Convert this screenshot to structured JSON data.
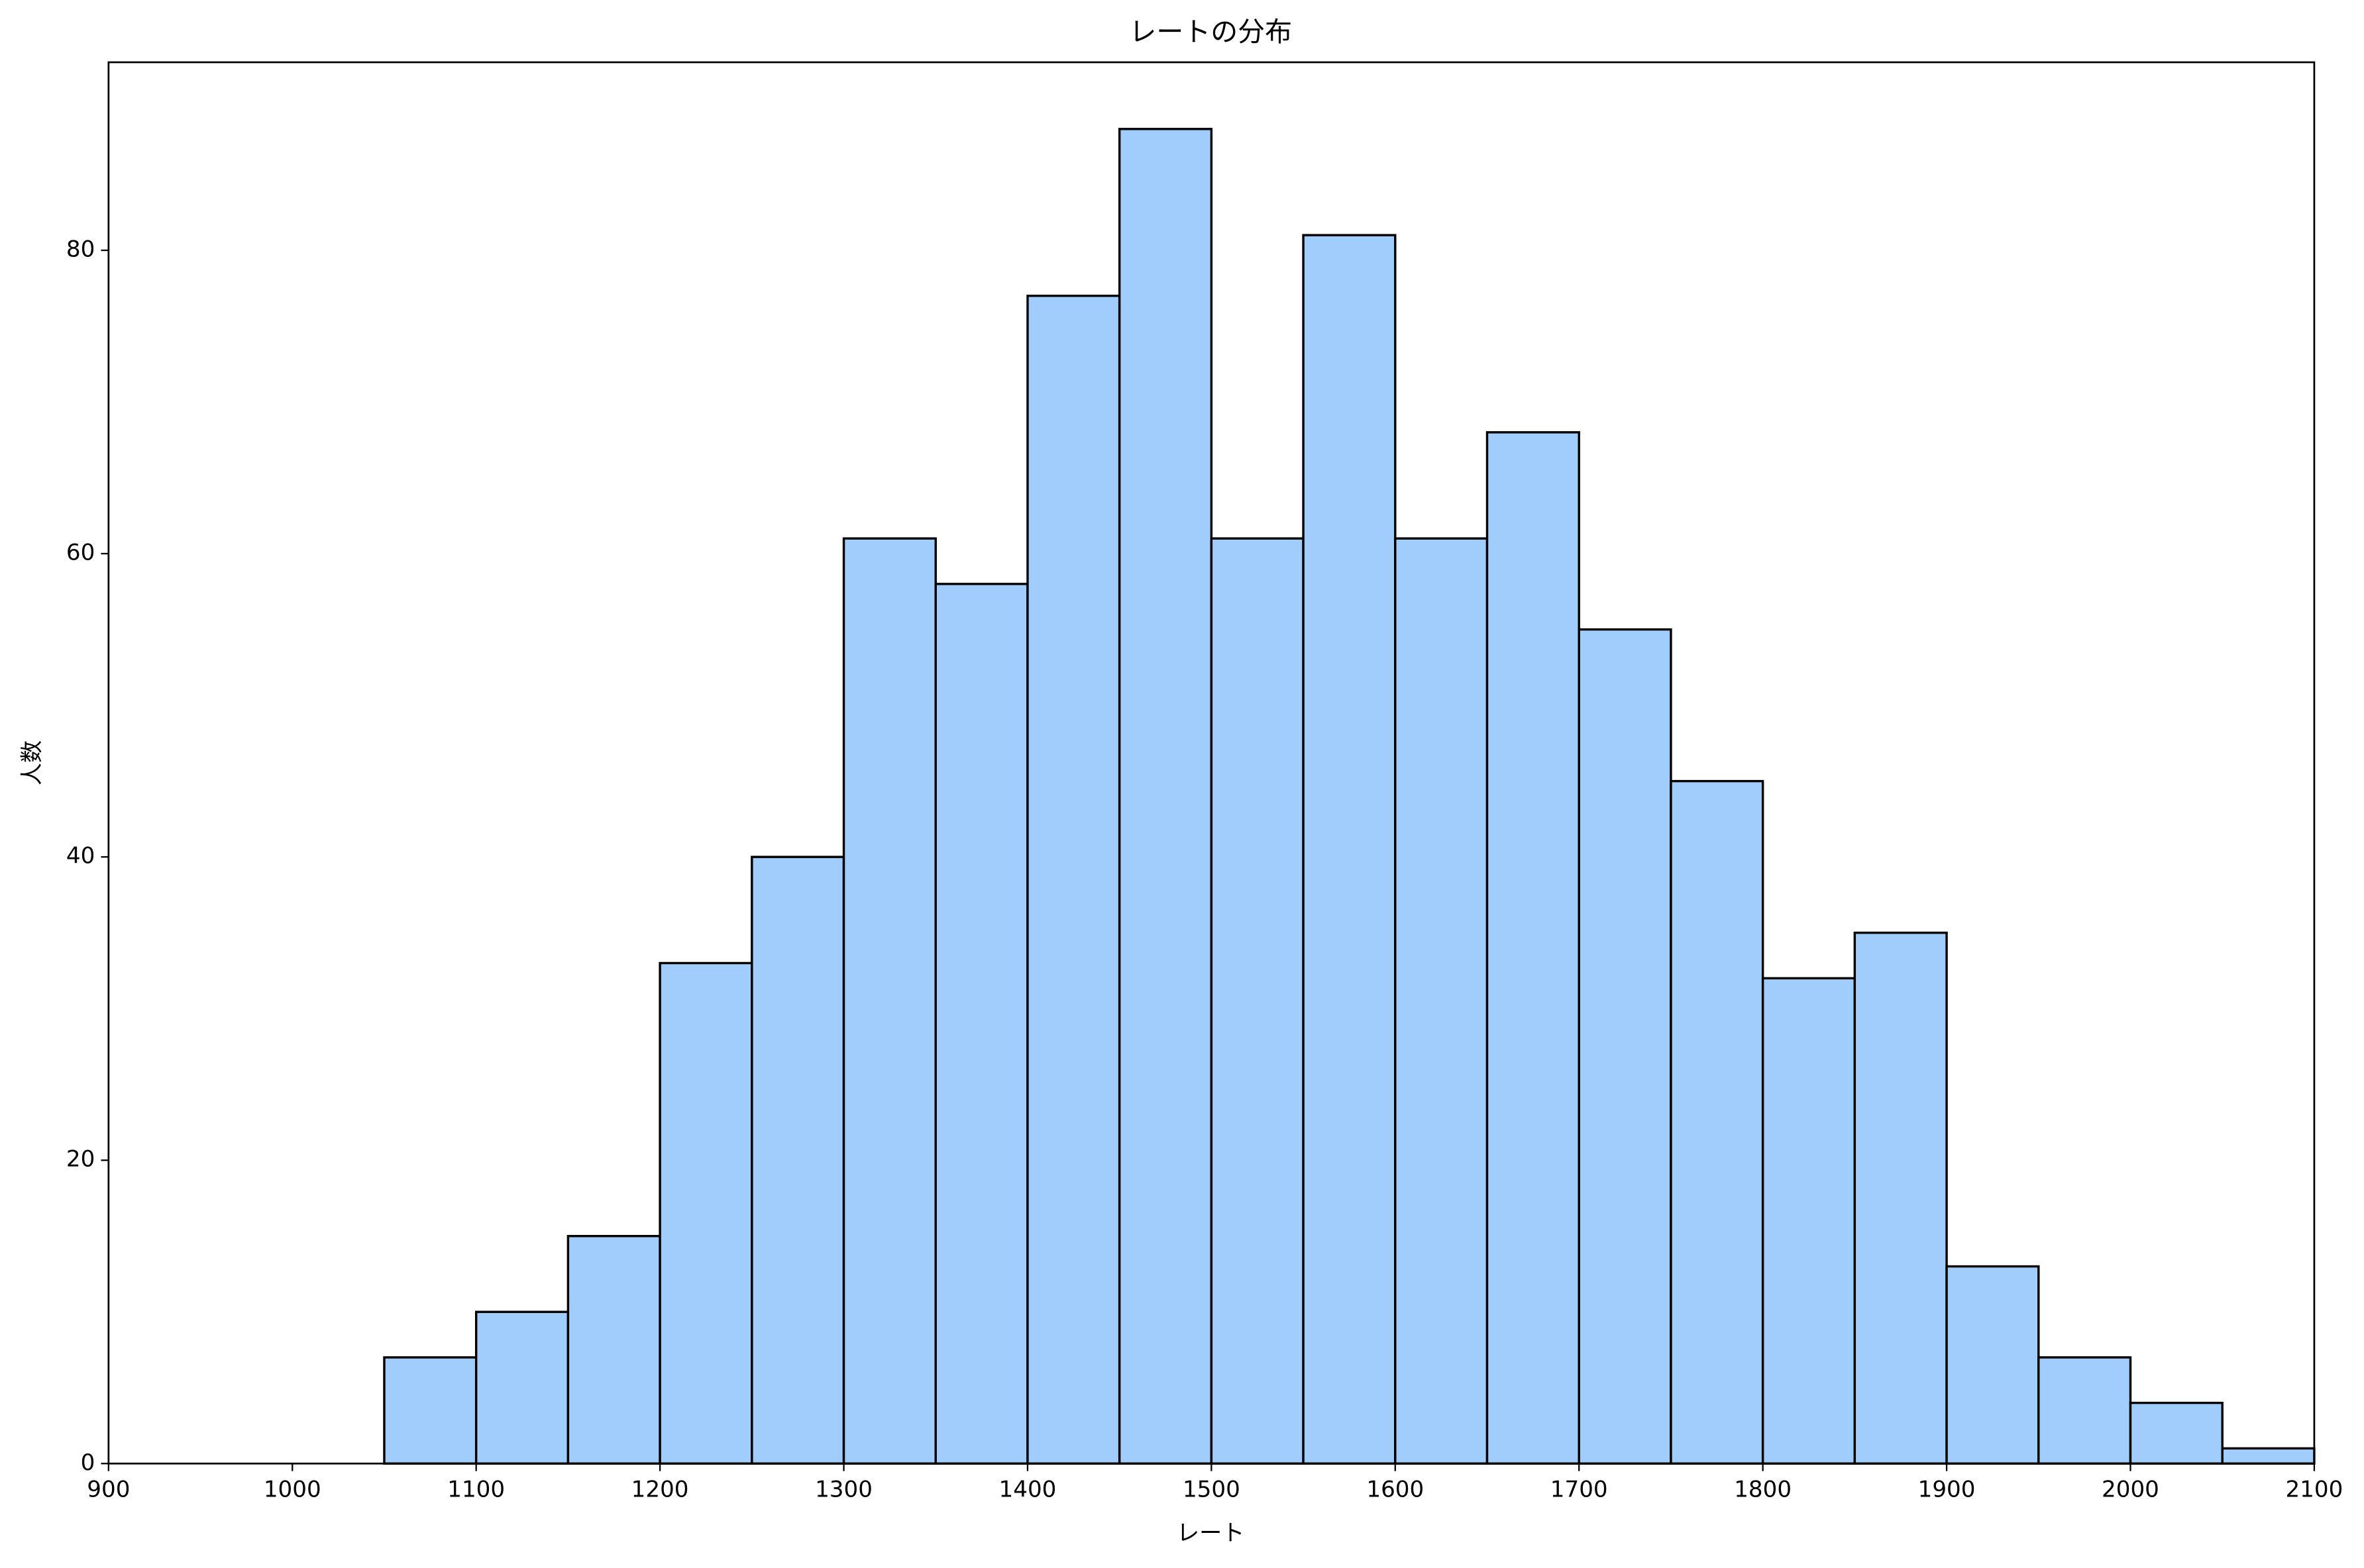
{
  "chart_data": {
    "type": "histogram",
    "title": "レートの分布",
    "x_label": "レート",
    "y_label": "人数",
    "bins": [
      900,
      950,
      1000,
      1050,
      1100,
      1150,
      1200,
      1250,
      1300,
      1350,
      1400,
      1450,
      1500,
      1550,
      1600,
      1650,
      1700,
      1750,
      1800,
      1850,
      1900,
      1950,
      2000,
      2050,
      2100
    ],
    "counts": [
      0,
      0,
      0,
      7,
      10,
      15,
      33,
      40,
      61,
      58,
      77,
      88,
      61,
      81,
      61,
      68,
      55,
      45,
      32,
      35,
      13,
      7,
      4,
      1
    ],
    "color": "#a0cdfc",
    "edgecolor": "#000000",
    "xlim": [
      900,
      2100
    ],
    "xticks": [
      900,
      1000,
      1100,
      1200,
      1300,
      1400,
      1500,
      1600,
      1700,
      1800,
      1900,
      2000,
      2100
    ],
    "ylim": [
      0,
      92.4
    ],
    "yticks": [
      0,
      20,
      40,
      60,
      80
    ],
    "grid": false
  }
}
